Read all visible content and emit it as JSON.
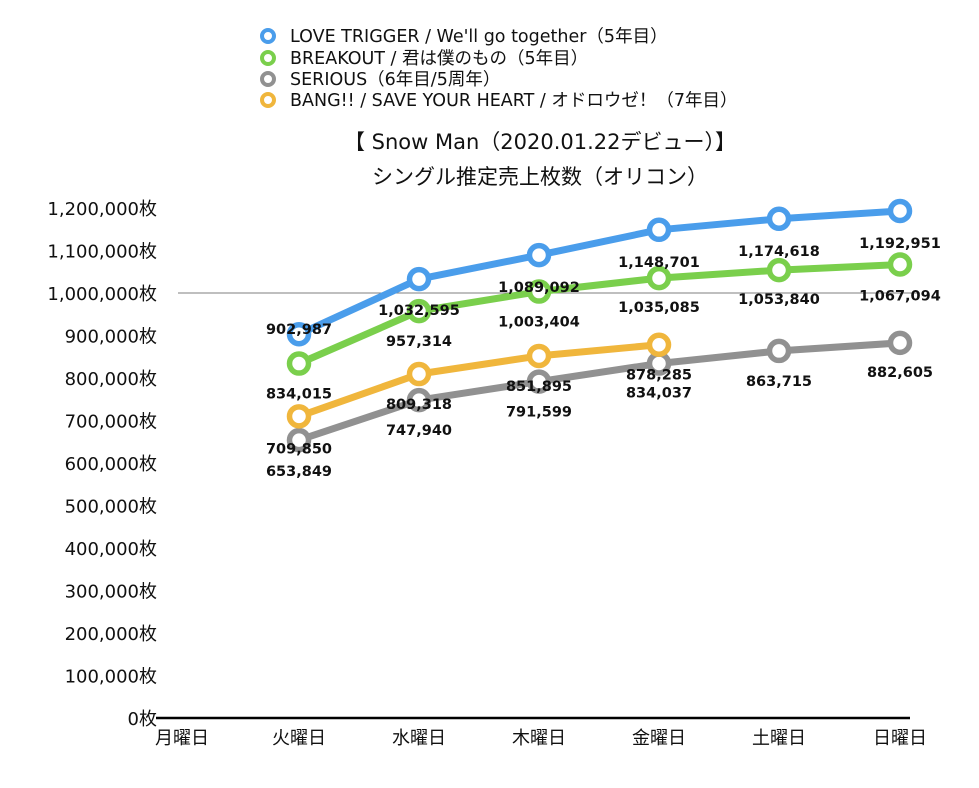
{
  "chart_data": {
    "type": "line",
    "title": "【 Snow Man（2020.01.22デビュー）】",
    "subtitle": "シングル推定売上枚数（オリコン）",
    "categories": [
      "月曜日",
      "火曜日",
      "水曜日",
      "木曜日",
      "金曜日",
      "土曜日",
      "日曜日"
    ],
    "ylim": [
      0,
      1200000
    ],
    "yticks": [
      {
        "value": 0,
        "label": "0枚"
      },
      {
        "value": 100000,
        "label": "100,000枚"
      },
      {
        "value": 200000,
        "label": "200,000枚"
      },
      {
        "value": 300000,
        "label": "300,000枚"
      },
      {
        "value": 400000,
        "label": "400,000枚"
      },
      {
        "value": 500000,
        "label": "500,000枚"
      },
      {
        "value": 600000,
        "label": "600,000枚"
      },
      {
        "value": 700000,
        "label": "700,000枚"
      },
      {
        "value": 800000,
        "label": "800,000枚"
      },
      {
        "value": 900000,
        "label": "900,000枚"
      },
      {
        "value": 1000000,
        "label": "1,000,000枚"
      },
      {
        "value": 1100000,
        "label": "1,100,000枚"
      },
      {
        "value": 1200000,
        "label": "1,200,000枚"
      }
    ],
    "reference_line": 1000000,
    "legend_position": "top",
    "series": [
      {
        "name": "LOVE TRIGGER / We'll go together（5年目）",
        "color": "#4A9DEB",
        "values": [
          null,
          902987,
          1032595,
          1089092,
          1148701,
          1174618,
          1192951
        ],
        "labels": [
          "",
          "902,987",
          "1,032,595",
          "1,089,092",
          "1,148,701",
          "1,174,618",
          "1,192,951"
        ]
      },
      {
        "name": "BREAKOUT / 君は僕のもの（5年目）",
        "color": "#7ACF4C",
        "values": [
          null,
          834015,
          957314,
          1003404,
          1035085,
          1053840,
          1067094
        ],
        "labels": [
          "",
          "834,015",
          "957,314",
          "1,003,404",
          "1,035,085",
          "1,053,840",
          "1,067,094"
        ]
      },
      {
        "name": "SERIOUS（6年目/5周年）",
        "color": "#919191",
        "values": [
          null,
          653849,
          747940,
          791599,
          834037,
          863715,
          882605
        ],
        "labels": [
          "",
          "653,849",
          "747,940",
          "791,599",
          "834,037",
          "863,715",
          "882,605"
        ]
      },
      {
        "name": "BANG!! / SAVE YOUR HEART / オドロウゼ！（7年目）",
        "color": "#F0B63C",
        "values": [
          null,
          709850,
          809318,
          851895,
          878285,
          null,
          null
        ],
        "labels": [
          "",
          "709,850",
          "809,318",
          "851,895",
          "878,285",
          "",
          ""
        ]
      }
    ]
  }
}
